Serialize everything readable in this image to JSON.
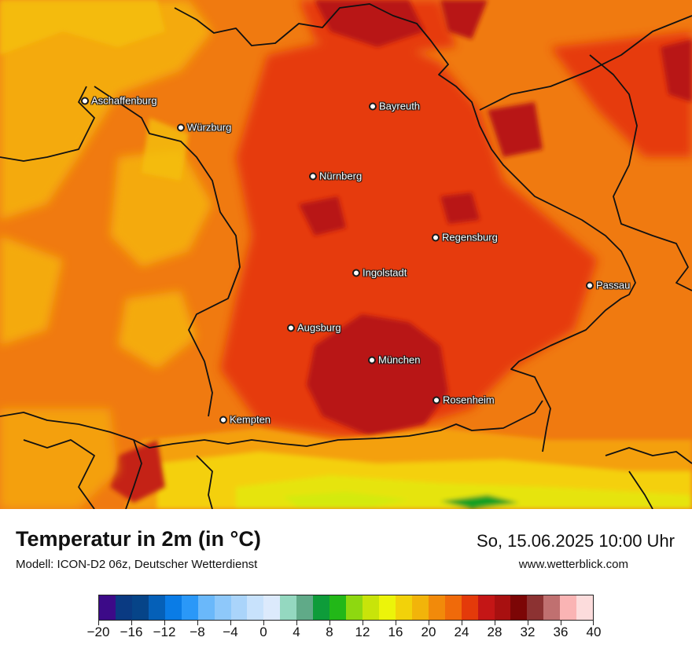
{
  "map": {
    "description_colors": {
      "warm_base": "#f07a10",
      "warmer": "#e63a10",
      "hottest": "#b81616",
      "cooler": "#f5b010",
      "alpine": "#f4d00a",
      "lime": "#d4ea0a",
      "green": "#18a020"
    },
    "cities": [
      {
        "name": "Aschaffenburg"
      },
      {
        "name": "Würzburg"
      },
      {
        "name": "Bayreuth"
      },
      {
        "name": "Nürnberg"
      },
      {
        "name": "Regensburg"
      },
      {
        "name": "Ingolstadt"
      },
      {
        "name": "Passau"
      },
      {
        "name": "Augsburg"
      },
      {
        "name": "München"
      },
      {
        "name": "Rosenheim"
      },
      {
        "name": "Kempten"
      }
    ]
  },
  "footer": {
    "title": "Temperatur in 2m (in °C)",
    "subtitle": "Modell: ICON-D2 06z, Deutscher Wetterdienst",
    "datetime": "So, 15.06.2025 10:00 Uhr",
    "website": "www.wetterblick.com"
  },
  "legend": {
    "min": -20,
    "max": 40,
    "tick_labels": [
      "−20",
      "−16",
      "−12",
      "−8",
      "−4",
      "0",
      "4",
      "8",
      "12",
      "16",
      "20",
      "24",
      "28",
      "32",
      "36",
      "40"
    ],
    "colors": [
      "#3c0a88",
      "#0a3a82",
      "#064488",
      "#0560b8",
      "#0a7ce6",
      "#2a98f8",
      "#6ab8fa",
      "#8ec8fa",
      "#aad4fa",
      "#c8e2fc",
      "#dceafc",
      "#94d8c0",
      "#60aa88",
      "#0e9c3a",
      "#22b818",
      "#8ed810",
      "#c8e40a",
      "#ecf40a",
      "#f2d20a",
      "#f2b40a",
      "#f28a0a",
      "#f06a0a",
      "#e43a0a",
      "#c41616",
      "#a81010",
      "#7c0606",
      "#8c3232",
      "#c07070",
      "#fab4b4",
      "#fcdcdc"
    ]
  }
}
